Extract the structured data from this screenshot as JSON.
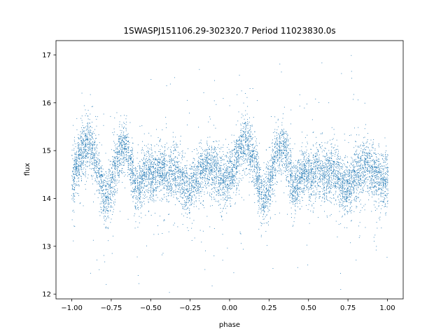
{
  "chart_data": {
    "type": "scatter",
    "title": "1SWASPJ151106.29-302320.7 Period 11023830.0s",
    "xlabel": "phase",
    "ylabel": "flux",
    "xlim": [
      -1.1,
      1.1
    ],
    "ylim": [
      11.9,
      17.3
    ],
    "x_ticks": [
      -1.0,
      -0.75,
      -0.5,
      -0.25,
      0.0,
      0.25,
      0.5,
      0.75,
      1.0
    ],
    "x_tick_labels": [
      "−1.00",
      "−0.75",
      "−0.50",
      "−0.25",
      "0.00",
      "0.25",
      "0.50",
      "0.75",
      "1.00"
    ],
    "y_ticks": [
      12,
      13,
      14,
      15,
      16,
      17
    ],
    "y_tick_labels": [
      "12",
      "13",
      "14",
      "15",
      "16",
      "17"
    ],
    "grid": false,
    "legend": "none",
    "marker_color": "#1f77b4",
    "series": [
      {
        "description_points": "dense folded light curve, phase -1 to 1, repeating every 1.0 in phase",
        "profile_phase": [
          0.0,
          0.02,
          0.05,
          0.08,
          0.1,
          0.12,
          0.15,
          0.18,
          0.2,
          0.22,
          0.25,
          0.28,
          0.3,
          0.33,
          0.35,
          0.38,
          0.4,
          0.43,
          0.45,
          0.48,
          0.5,
          0.53,
          0.55,
          0.58,
          0.6,
          0.63,
          0.65,
          0.68,
          0.7,
          0.73,
          0.75,
          0.78,
          0.8,
          0.83,
          0.85,
          0.88,
          0.9,
          0.93,
          0.95,
          0.98,
          1.0
        ],
        "profile_flux": [
          14.4,
          14.6,
          14.9,
          15.1,
          15.2,
          15.1,
          14.8,
          14.4,
          14.1,
          14.0,
          14.3,
          14.7,
          15.0,
          15.1,
          15.0,
          14.6,
          14.2,
          14.3,
          14.5,
          14.6,
          14.5,
          14.5,
          14.6,
          14.6,
          14.5,
          14.5,
          14.6,
          14.5,
          14.3,
          14.2,
          14.2,
          14.4,
          14.5,
          14.6,
          14.7,
          14.7,
          14.6,
          14.5,
          14.4,
          14.4,
          14.4
        ]
      }
    ]
  }
}
